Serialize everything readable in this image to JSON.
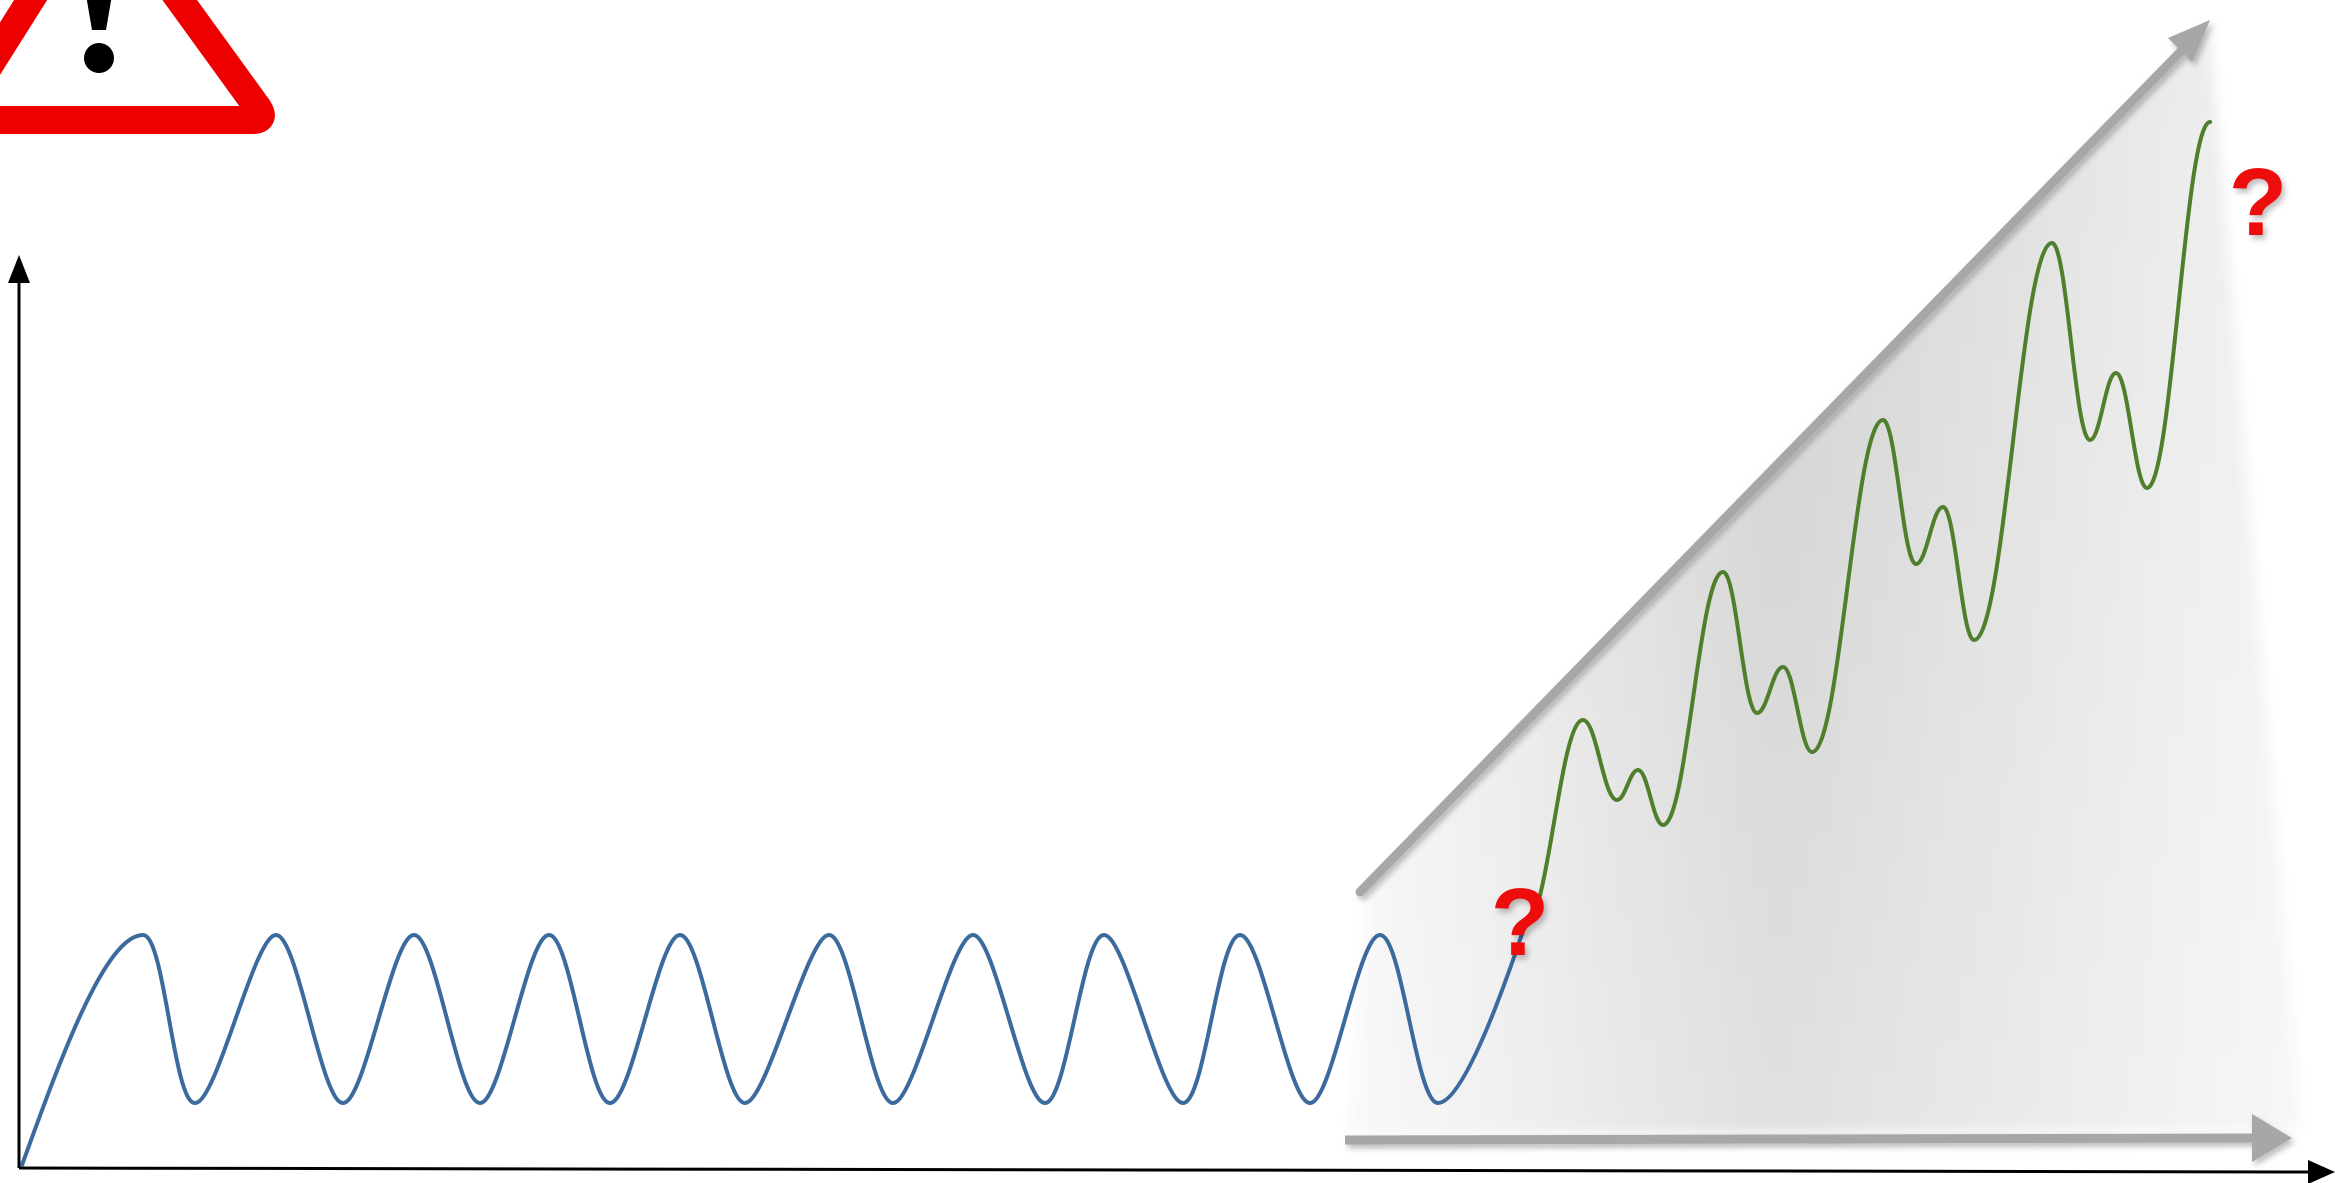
{
  "colors": {
    "stable_wave": "#3b6a9c",
    "growth_wave": "#4f7f2c",
    "warning_red": "#ee0000",
    "trend_arrow": "#a7a7a7",
    "axis": "#000000",
    "question_mark": "#ee0a0a"
  },
  "icons": {
    "warning": "warning-triangle-icon"
  },
  "question_marks": [
    "?",
    "?"
  ],
  "waves": {
    "stable": {
      "cycles": 10
    },
    "growth": {
      "cycles": 4
    }
  }
}
